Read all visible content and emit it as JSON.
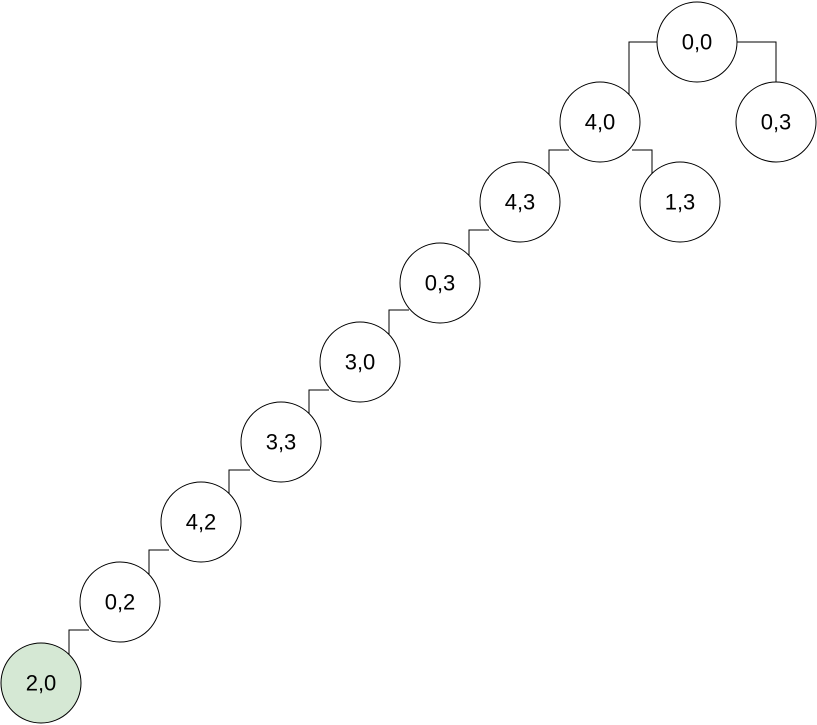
{
  "nodes": [
    {
      "id": "n0",
      "label": "0,0",
      "fill": "#ffffff"
    },
    {
      "id": "n1",
      "label": "4,0",
      "fill": "#ffffff"
    },
    {
      "id": "n2",
      "label": "0,3",
      "fill": "#ffffff"
    },
    {
      "id": "n3",
      "label": "4,3",
      "fill": "#ffffff"
    },
    {
      "id": "n4",
      "label": "1,3",
      "fill": "#ffffff"
    },
    {
      "id": "n5",
      "label": "0,3",
      "fill": "#ffffff"
    },
    {
      "id": "n6",
      "label": "3,0",
      "fill": "#ffffff"
    },
    {
      "id": "n7",
      "label": "3,3",
      "fill": "#ffffff"
    },
    {
      "id": "n8",
      "label": "4,2",
      "fill": "#ffffff"
    },
    {
      "id": "n9",
      "label": "0,2",
      "fill": "#ffffff"
    },
    {
      "id": "n10",
      "label": "2,0",
      "fill": "#d5e8d4",
      "stroke": "#82b366"
    }
  ],
  "edges": [
    {
      "from": "n0",
      "to": "n1"
    },
    {
      "from": "n0",
      "to": "n2"
    },
    {
      "from": "n1",
      "to": "n3"
    },
    {
      "from": "n1",
      "to": "n4"
    },
    {
      "from": "n3",
      "to": "n5"
    },
    {
      "from": "n5",
      "to": "n6"
    },
    {
      "from": "n6",
      "to": "n7"
    },
    {
      "from": "n7",
      "to": "n8"
    },
    {
      "from": "n8",
      "to": "n9"
    },
    {
      "from": "n9",
      "to": "n10"
    }
  ]
}
